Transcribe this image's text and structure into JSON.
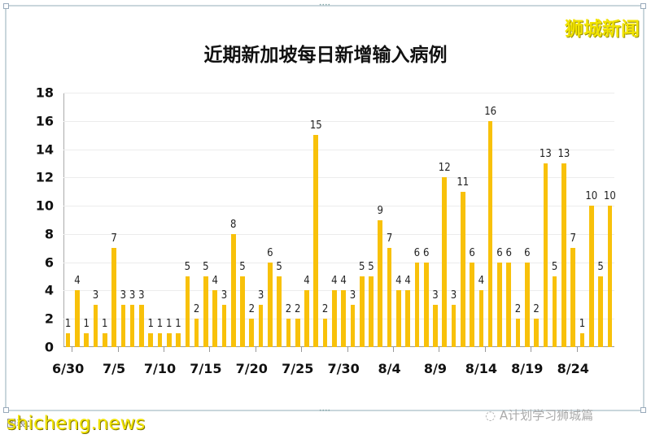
{
  "title": "近期新加坡每日新增输入病例",
  "brand": "狮城新闻",
  "footer": {
    "source_text": "图表：",
    "watermark_site": "shicheng.news",
    "watermark_account": "A计划学习狮城篇"
  },
  "colors": {
    "bar": "#f8c10a",
    "brand": "#f2e400"
  },
  "chart_data": {
    "type": "bar",
    "title": "近期新加坡每日新增输入病例",
    "xlabel": "",
    "ylabel": "",
    "ylim": [
      0,
      18
    ],
    "yticks": [
      0,
      2,
      4,
      6,
      8,
      10,
      12,
      14,
      16,
      18
    ],
    "grid": true,
    "legend": null,
    "xtick_labels": [
      "6/30",
      "7/5",
      "7/10",
      "7/15",
      "7/20",
      "7/25",
      "7/30",
      "8/4",
      "8/9",
      "8/14",
      "8/19",
      "8/24"
    ],
    "categories": [
      "6/30",
      "7/1",
      "7/2",
      "7/3",
      "7/4",
      "7/5",
      "7/6",
      "7/7",
      "7/8",
      "7/9",
      "7/10",
      "7/11",
      "7/12",
      "7/13",
      "7/14",
      "7/15",
      "7/16",
      "7/17",
      "7/18",
      "7/19",
      "7/20",
      "7/21",
      "7/22",
      "7/23",
      "7/24",
      "7/25",
      "7/26",
      "7/27",
      "7/28",
      "7/29",
      "7/30",
      "7/31",
      "8/1",
      "8/2",
      "8/3",
      "8/4",
      "8/5",
      "8/6",
      "8/7",
      "8/8",
      "8/9",
      "8/10",
      "8/11",
      "8/12",
      "8/13",
      "8/14",
      "8/15",
      "8/16",
      "8/17",
      "8/18",
      "8/19",
      "8/20",
      "8/21",
      "8/22",
      "8/23",
      "8/24",
      "8/25",
      "8/26",
      "8/27",
      "8/28"
    ],
    "values": [
      1,
      4,
      1,
      3,
      1,
      7,
      3,
      3,
      3,
      1,
      1,
      1,
      1,
      5,
      2,
      5,
      4,
      3,
      8,
      5,
      2,
      3,
      6,
      5,
      2,
      2,
      4,
      15,
      2,
      4,
      4,
      3,
      5,
      5,
      9,
      7,
      4,
      4,
      6,
      6,
      3,
      12,
      3,
      11,
      6,
      4,
      16,
      6,
      6,
      2,
      6,
      2,
      13,
      5,
      13,
      7,
      1,
      10,
      5,
      10
    ]
  }
}
